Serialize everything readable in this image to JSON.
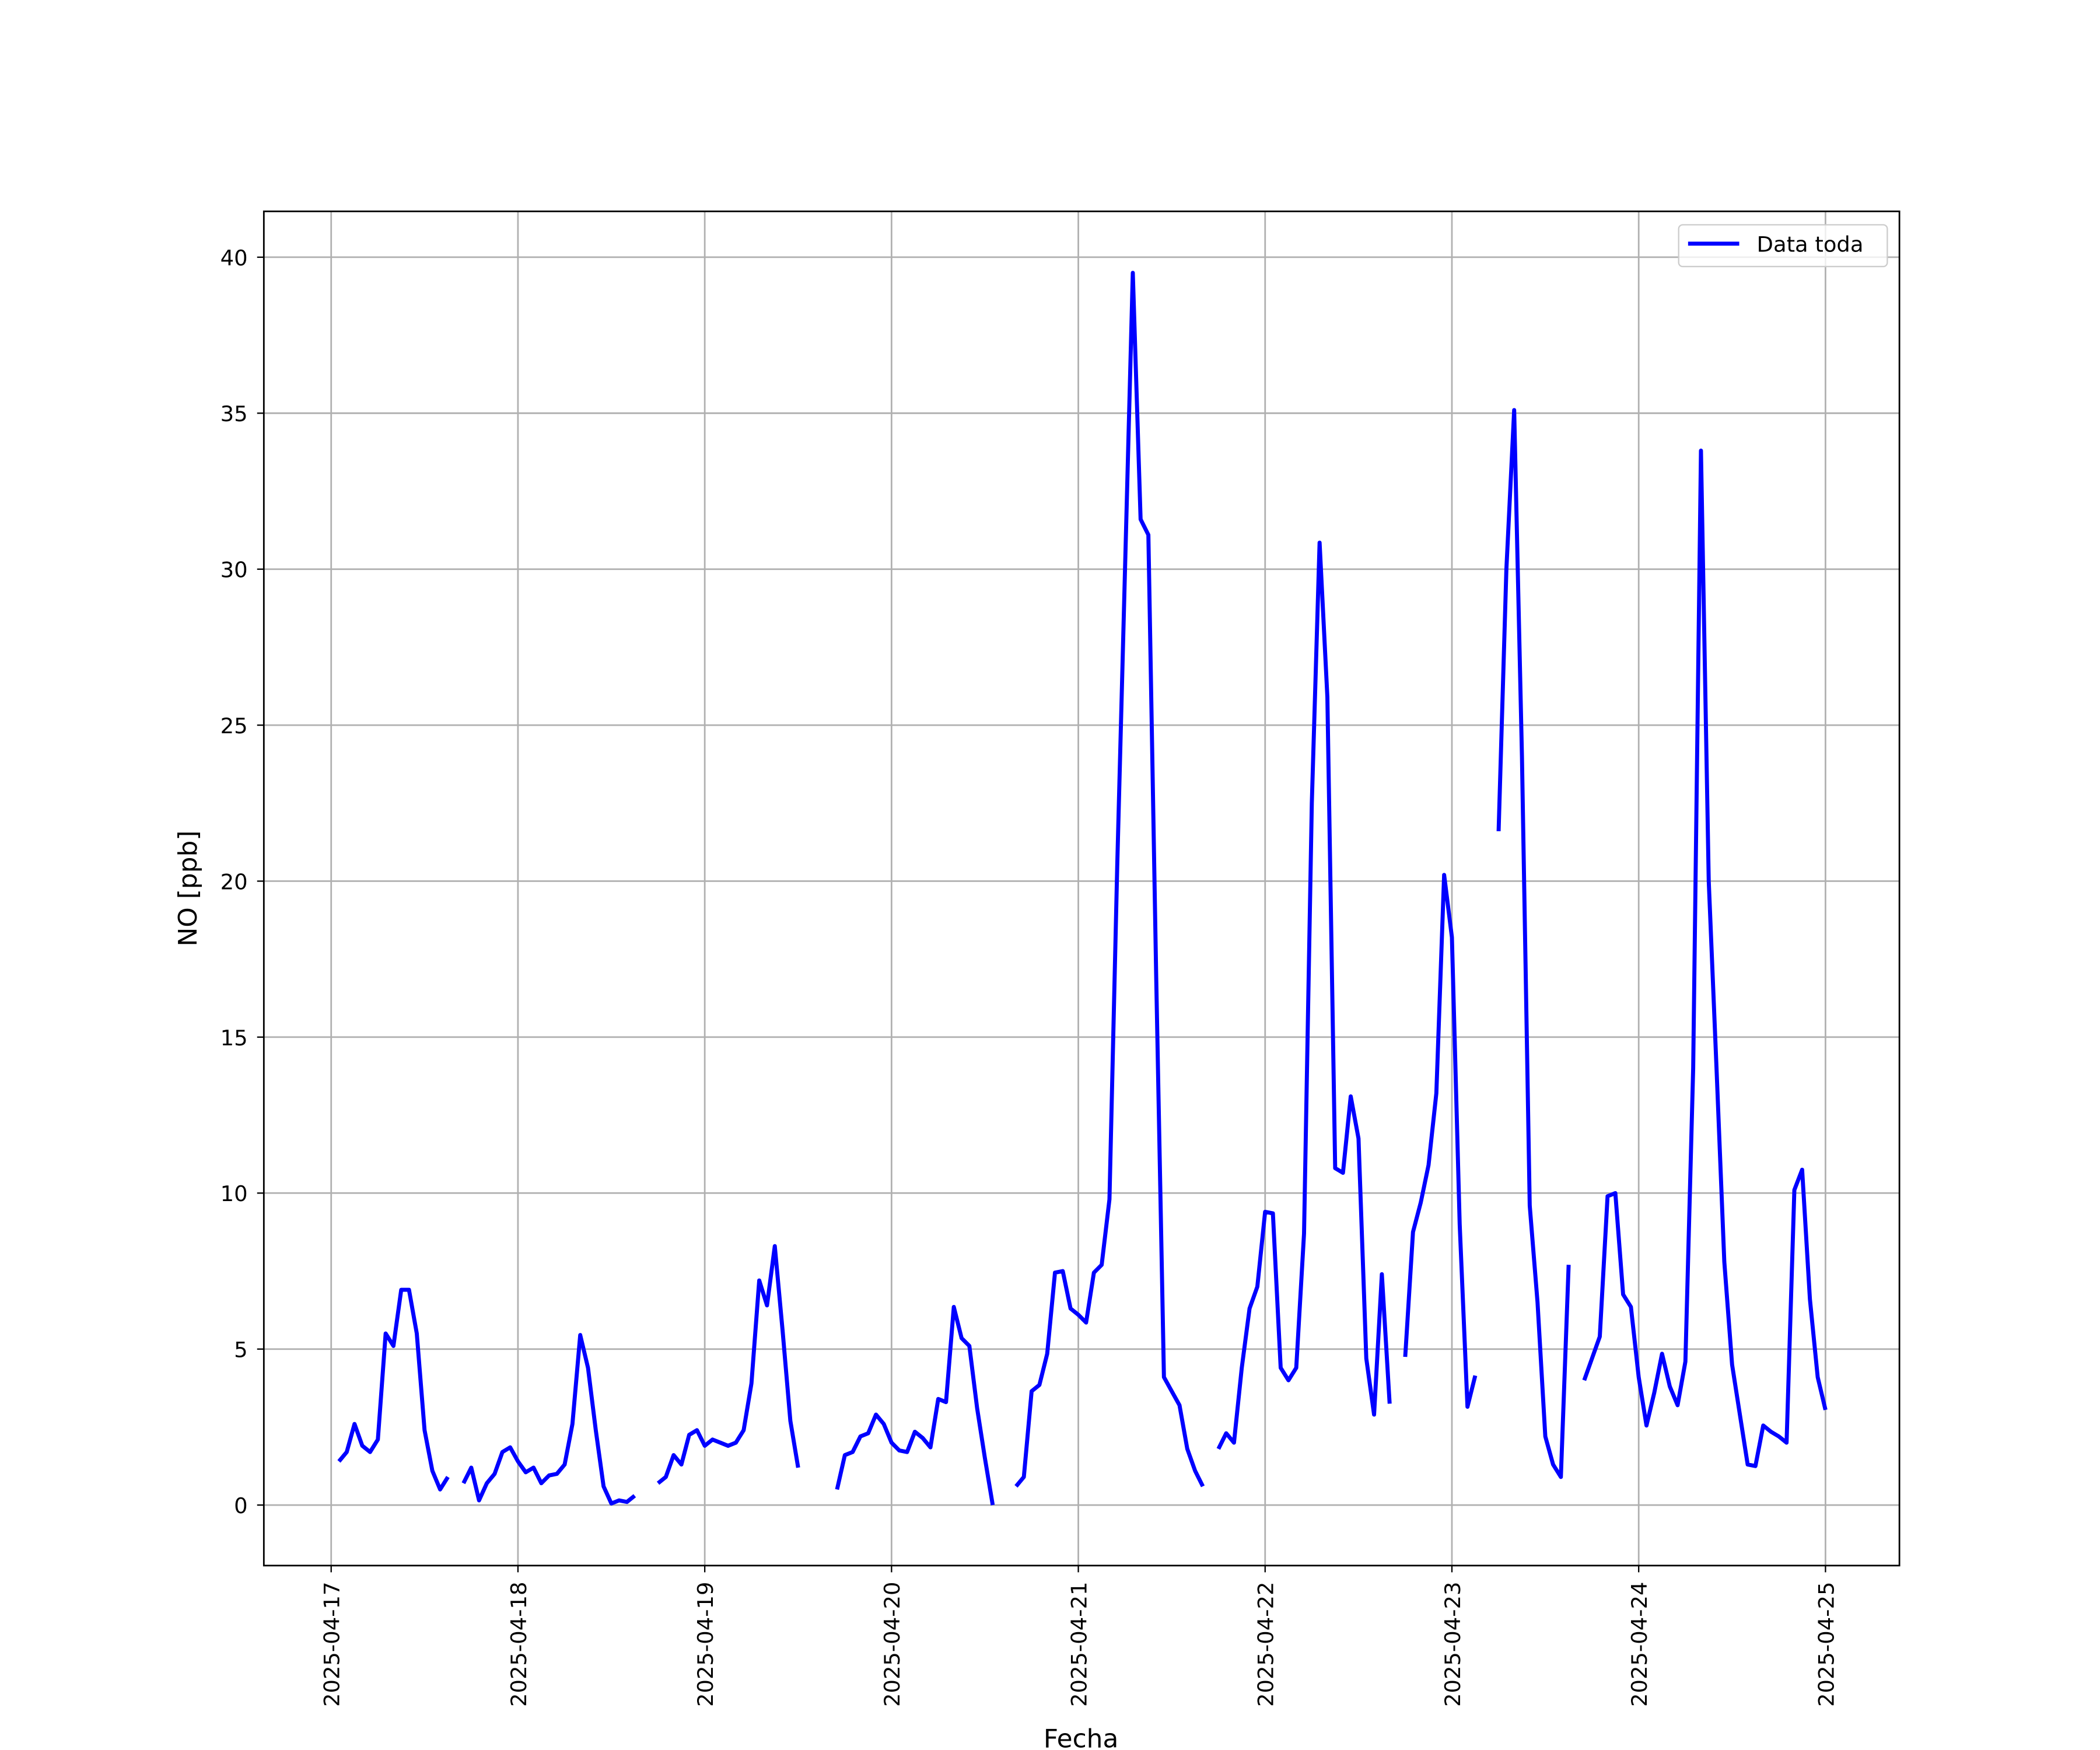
{
  "chart_data": {
    "type": "line",
    "xlabel": "Fecha",
    "ylabel": "NO [ppb]",
    "x": [
      "2025-04-17 01:00",
      "2025-04-17 02:00",
      "2025-04-17 03:00",
      "2025-04-17 04:00",
      "2025-04-17 05:00",
      "2025-04-17 06:00",
      "2025-04-17 07:00",
      "2025-04-17 08:00",
      "2025-04-17 09:00",
      "2025-04-17 10:00",
      "2025-04-17 11:00",
      "2025-04-17 12:00",
      "2025-04-17 13:00",
      "2025-04-17 14:00",
      "2025-04-17 15:00",
      "2025-04-17 16:00",
      "2025-04-17 17:00",
      "2025-04-17 18:00",
      "2025-04-17 19:00",
      "2025-04-17 20:00",
      "2025-04-17 21:00",
      "2025-04-17 22:00",
      "2025-04-17 23:00",
      "2025-04-18 00:00",
      "2025-04-18 01:00",
      "2025-04-18 02:00",
      "2025-04-18 03:00",
      "2025-04-18 04:00",
      "2025-04-18 05:00",
      "2025-04-18 06:00",
      "2025-04-18 07:00",
      "2025-04-18 08:00",
      "2025-04-18 09:00",
      "2025-04-18 10:00",
      "2025-04-18 11:00",
      "2025-04-18 12:00",
      "2025-04-18 13:00",
      "2025-04-18 14:00",
      "2025-04-18 15:00",
      "2025-04-18 16:00",
      "2025-04-18 17:00",
      "2025-04-18 18:00",
      "2025-04-18 19:00",
      "2025-04-18 20:00",
      "2025-04-18 21:00",
      "2025-04-18 22:00",
      "2025-04-18 23:00",
      "2025-04-19 00:00",
      "2025-04-19 01:00",
      "2025-04-19 02:00",
      "2025-04-19 03:00",
      "2025-04-19 04:00",
      "2025-04-19 05:00",
      "2025-04-19 06:00",
      "2025-04-19 07:00",
      "2025-04-19 08:00",
      "2025-04-19 09:00",
      "2025-04-19 10:00",
      "2025-04-19 11:00",
      "2025-04-19 12:00",
      "2025-04-19 13:00",
      "2025-04-19 14:00",
      "2025-04-19 15:00",
      "2025-04-19 16:00",
      "2025-04-19 17:00",
      "2025-04-19 18:00",
      "2025-04-19 19:00",
      "2025-04-19 20:00",
      "2025-04-19 21:00",
      "2025-04-19 22:00",
      "2025-04-19 23:00",
      "2025-04-20 00:00",
      "2025-04-20 01:00",
      "2025-04-20 02:00",
      "2025-04-20 03:00",
      "2025-04-20 04:00",
      "2025-04-20 05:00",
      "2025-04-20 06:00",
      "2025-04-20 07:00",
      "2025-04-20 08:00",
      "2025-04-20 09:00",
      "2025-04-20 10:00",
      "2025-04-20 11:00",
      "2025-04-20 12:00",
      "2025-04-20 13:00",
      "2025-04-20 14:00",
      "2025-04-20 15:00",
      "2025-04-20 16:00",
      "2025-04-20 17:00",
      "2025-04-20 18:00",
      "2025-04-20 19:00",
      "2025-04-20 20:00",
      "2025-04-20 21:00",
      "2025-04-20 22:00",
      "2025-04-20 23:00",
      "2025-04-21 00:00",
      "2025-04-21 01:00",
      "2025-04-21 02:00",
      "2025-04-21 03:00",
      "2025-04-21 04:00",
      "2025-04-21 05:00",
      "2025-04-21 06:00",
      "2025-04-21 07:00",
      "2025-04-21 08:00",
      "2025-04-21 09:00",
      "2025-04-21 10:00",
      "2025-04-21 11:00",
      "2025-04-21 12:00",
      "2025-04-21 13:00",
      "2025-04-21 14:00",
      "2025-04-21 15:00",
      "2025-04-21 16:00",
      "2025-04-21 17:00",
      "2025-04-21 18:00",
      "2025-04-21 19:00",
      "2025-04-21 20:00",
      "2025-04-21 21:00",
      "2025-04-21 22:00",
      "2025-04-21 23:00",
      "2025-04-22 00:00",
      "2025-04-22 01:00",
      "2025-04-22 02:00",
      "2025-04-22 03:00",
      "2025-04-22 04:00",
      "2025-04-22 05:00",
      "2025-04-22 06:00",
      "2025-04-22 07:00",
      "2025-04-22 08:00",
      "2025-04-22 09:00",
      "2025-04-22 10:00",
      "2025-04-22 11:00",
      "2025-04-22 12:00",
      "2025-04-22 13:00",
      "2025-04-22 14:00",
      "2025-04-22 15:00",
      "2025-04-22 16:00",
      "2025-04-22 17:00",
      "2025-04-22 18:00",
      "2025-04-22 19:00",
      "2025-04-22 20:00",
      "2025-04-22 21:00",
      "2025-04-22 22:00",
      "2025-04-22 23:00",
      "2025-04-23 00:00",
      "2025-04-23 01:00",
      "2025-04-23 02:00",
      "2025-04-23 03:00",
      "2025-04-23 04:00",
      "2025-04-23 05:00",
      "2025-04-23 06:00",
      "2025-04-23 07:00",
      "2025-04-23 08:00",
      "2025-04-23 09:00",
      "2025-04-23 10:00",
      "2025-04-23 11:00",
      "2025-04-23 12:00",
      "2025-04-23 13:00",
      "2025-04-23 14:00",
      "2025-04-23 15:00",
      "2025-04-23 16:00",
      "2025-04-23 17:00",
      "2025-04-23 18:00",
      "2025-04-23 19:00",
      "2025-04-23 20:00",
      "2025-04-23 21:00",
      "2025-04-23 22:00",
      "2025-04-23 23:00",
      "2025-04-24 00:00",
      "2025-04-24 01:00",
      "2025-04-24 02:00",
      "2025-04-24 03:00",
      "2025-04-24 04:00",
      "2025-04-24 05:00",
      "2025-04-24 06:00",
      "2025-04-24 07:00",
      "2025-04-24 08:00",
      "2025-04-24 09:00",
      "2025-04-24 10:00",
      "2025-04-24 11:00",
      "2025-04-24 12:00",
      "2025-04-24 13:00",
      "2025-04-24 14:00",
      "2025-04-24 15:00",
      "2025-04-24 16:00",
      "2025-04-24 17:00",
      "2025-04-24 18:00",
      "2025-04-24 19:00",
      "2025-04-24 20:00",
      "2025-04-24 21:00",
      "2025-04-24 22:00",
      "2025-04-24 23:00",
      "2025-04-25 00:00"
    ],
    "series": [
      {
        "name": "Data toda",
        "color": "#0000ff",
        "values": [
          1.4,
          1.7,
          2.6,
          1.9,
          1.7,
          2.1,
          5.5,
          5.1,
          6.9,
          6.9,
          5.5,
          2.4,
          1.1,
          0.5,
          0.9,
          null,
          0.7,
          1.2,
          0.15,
          0.7,
          1.0,
          1.7,
          1.85,
          1.4,
          1.05,
          1.2,
          0.7,
          0.95,
          1.0,
          1.3,
          2.6,
          5.45,
          4.4,
          2.4,
          0.6,
          0.05,
          0.15,
          0.1,
          0.3,
          null,
          null,
          0.7,
          0.9,
          1.6,
          1.3,
          2.25,
          2.4,
          1.9,
          2.1,
          2.0,
          1.9,
          2.0,
          2.4,
          3.9,
          7.2,
          6.4,
          8.3,
          5.6,
          2.7,
          1.2,
          null,
          null,
          null,
          null,
          0.5,
          1.6,
          1.7,
          2.2,
          2.3,
          2.9,
          2.6,
          2.0,
          1.75,
          1.7,
          2.35,
          2.15,
          1.85,
          3.4,
          3.3,
          6.35,
          5.35,
          5.1,
          3.1,
          1.5,
          0.0,
          null,
          null,
          0.6,
          0.9,
          3.65,
          3.85,
          4.85,
          7.45,
          7.5,
          6.3,
          6.1,
          5.85,
          7.45,
          7.7,
          9.8,
          20.5,
          30.0,
          39.5,
          31.6,
          31.1,
          17.0,
          4.1,
          3.65,
          3.2,
          1.8,
          1.1,
          0.6,
          null,
          1.8,
          2.3,
          2.0,
          4.4,
          6.3,
          7.0,
          9.4,
          9.35,
          4.4,
          4.0,
          4.4,
          8.7,
          22.5,
          30.85,
          25.9,
          10.8,
          10.65,
          13.1,
          11.75,
          4.7,
          2.9,
          7.4,
          3.25,
          null,
          4.75,
          8.75,
          9.7,
          10.9,
          13.2,
          20.2,
          18.2,
          9.0,
          3.15,
          4.15,
          null,
          null,
          21.6,
          30.0,
          35.1,
          24.0,
          9.6,
          6.5,
          2.2,
          1.3,
          0.9,
          7.7,
          null,
          4.0,
          4.7,
          5.4,
          9.9,
          10.0,
          6.75,
          6.35,
          4.1,
          2.55,
          3.6,
          4.85,
          3.8,
          3.2,
          4.6,
          14.0,
          33.8,
          20.0,
          14.0,
          7.8,
          4.5,
          2.9,
          1.3,
          1.25,
          2.55,
          2.35,
          2.2,
          2.0,
          10.1,
          10.75,
          6.6,
          4.1,
          3.05
        ]
      }
    ],
    "xlim": [
      "2025-04-16 15:21",
      "2025-04-25 09:30"
    ],
    "xticks": [
      "2025-04-17",
      "2025-04-18",
      "2025-04-19",
      "2025-04-20",
      "2025-04-21",
      "2025-04-22",
      "2025-04-23",
      "2025-04-24",
      "2025-04-25"
    ],
    "ylim": [
      -1.94,
      41.47
    ],
    "yticks": [
      0,
      5,
      10,
      15,
      20,
      25,
      30,
      35,
      40
    ],
    "grid": true,
    "legend": "upper right"
  }
}
